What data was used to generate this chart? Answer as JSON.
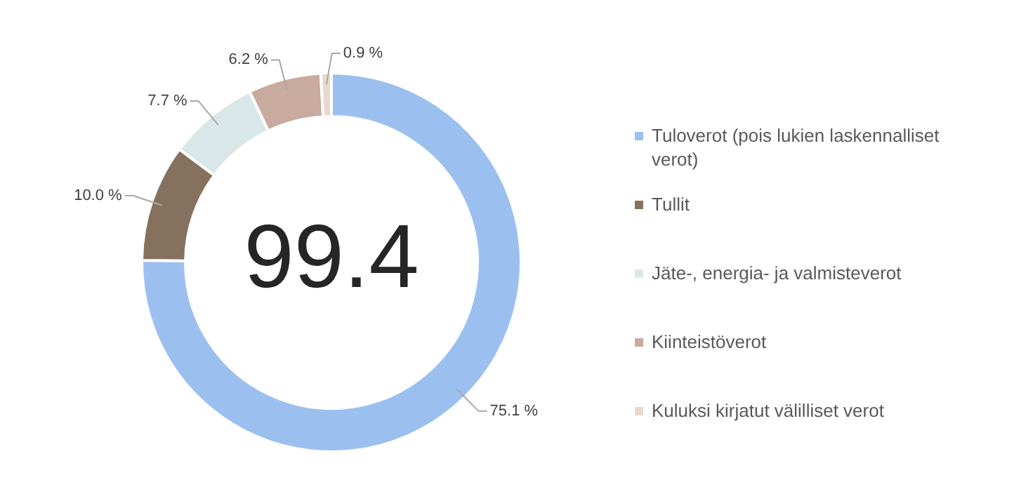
{
  "chart_data": {
    "type": "donut",
    "categories": [
      "Tuloverot (pois lukien laskennalliset verot)",
      "Tullit",
      "Jäte-, energia- ja valmisteverot",
      "Kiinteistöverot",
      "Kuluksi kirjatut välilliset verot"
    ],
    "values": [
      75.1,
      10.0,
      7.7,
      6.2,
      0.9
    ],
    "colors": [
      "#9bc0f0",
      "#85715d",
      "#d9e7e8",
      "#c8aa9e",
      "#e9d9cd"
    ],
    "value_labels": [
      "75.1 %",
      "10.0 %",
      "7.7 %",
      "6.2 %",
      "0.9 %"
    ],
    "annotations": [
      "99.4"
    ],
    "legend": "right"
  }
}
